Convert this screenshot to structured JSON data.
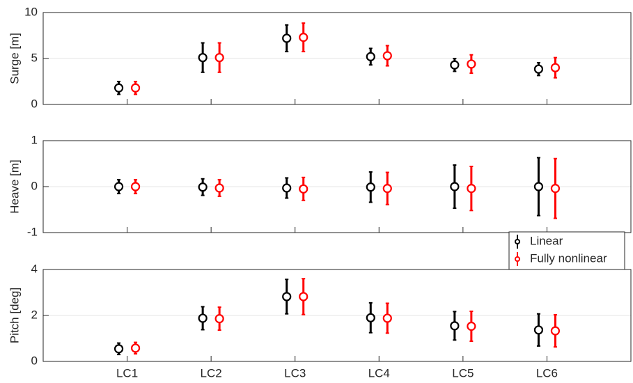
{
  "chart_data": [
    {
      "type": "errorbar",
      "ylabel": "Surge [m]",
      "ylim": [
        0,
        10
      ],
      "yticks": [
        0,
        5,
        10
      ],
      "grid": true,
      "series": [
        {
          "color": "#000000",
          "values": [
            1.8,
            5.1,
            7.2,
            5.2,
            4.3,
            3.85
          ],
          "errors": [
            0.7,
            1.6,
            1.45,
            0.9,
            0.7,
            0.7
          ]
        },
        {
          "color": "#ff0000",
          "values": [
            1.8,
            5.1,
            7.3,
            5.3,
            4.4,
            4.0
          ],
          "errors": [
            0.7,
            1.6,
            1.55,
            1.1,
            1.0,
            1.1
          ]
        }
      ]
    },
    {
      "type": "errorbar",
      "ylabel": "Heave [m]",
      "ylim": [
        -1,
        1
      ],
      "yticks": [
        -1,
        0,
        1
      ],
      "grid": true,
      "legend": "southeast",
      "series": [
        {
          "name": "Linear",
          "color": "#000000",
          "values": [
            0,
            -0.01,
            -0.03,
            -0.01,
            0,
            0
          ],
          "errors": [
            0.15,
            0.18,
            0.22,
            0.33,
            0.47,
            0.63
          ]
        },
        {
          "name": "Fully nonlinear",
          "color": "#ff0000",
          "values": [
            0,
            -0.03,
            -0.05,
            -0.04,
            -0.04,
            -0.04
          ],
          "errors": [
            0.15,
            0.18,
            0.25,
            0.35,
            0.48,
            0.65
          ]
        }
      ]
    },
    {
      "type": "errorbar",
      "ylabel": "Pitch [deg]",
      "ylim": [
        0,
        4
      ],
      "yticks": [
        0,
        2,
        4
      ],
      "grid": true,
      "categories": [
        "LC1",
        "LC2",
        "LC3",
        "LC4",
        "LC5",
        "LC6"
      ],
      "series": [
        {
          "color": "#000000",
          "values": [
            0.55,
            1.88,
            2.82,
            1.9,
            1.55,
            1.37
          ],
          "errors": [
            0.25,
            0.5,
            0.75,
            0.65,
            0.62,
            0.7
          ]
        },
        {
          "color": "#ff0000",
          "values": [
            0.58,
            1.86,
            2.82,
            1.88,
            1.53,
            1.33
          ],
          "errors": [
            0.25,
            0.5,
            0.78,
            0.65,
            0.65,
            0.7
          ]
        }
      ]
    }
  ]
}
